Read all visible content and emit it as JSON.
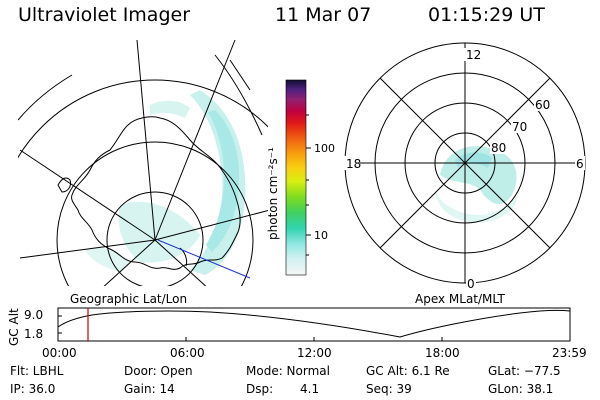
{
  "header": {
    "title": "Ultraviolet Imager",
    "date": "11 Mar 07",
    "time": "01:15:29 UT"
  },
  "colorbar": {
    "unit_label": "photon cm⁻²s⁻¹",
    "ticks": [
      "100",
      "10"
    ]
  },
  "geo_map": {
    "caption": "Geographic Lat/Lon"
  },
  "polar_plot": {
    "caption": "Apex MLat/MLT",
    "mlt_labels": {
      "top": "12",
      "left": "18",
      "right": "6",
      "bottom": "0"
    },
    "lat_labels": [
      "60",
      "70",
      "80"
    ]
  },
  "altitude_plot": {
    "ylabel": "GC Alt",
    "yticks": [
      "9.0",
      "1.8"
    ],
    "xticks": [
      "00:00",
      "06:00",
      "12:00",
      "18:00",
      "23:59"
    ],
    "marker_time": "01:15"
  },
  "info": {
    "flt": "Flt: LBHL",
    "ip": "IP: 36.0",
    "door": "Door: Open",
    "gain": "Gain: 14",
    "mode": "Mode: Normal",
    "dsp_label": "Dsp:",
    "dsp_value": "4.1",
    "gc_alt": "GC Alt: 6.1 Re",
    "seq": "Seq: 39",
    "glat": "GLat: −77.5",
    "glon": "GLon:  38.1"
  },
  "colors": {
    "aurora": "#bfeee9",
    "aurora_dense": "#9fe4e4",
    "marker": "#cc0000",
    "track": "#2233cc"
  }
}
